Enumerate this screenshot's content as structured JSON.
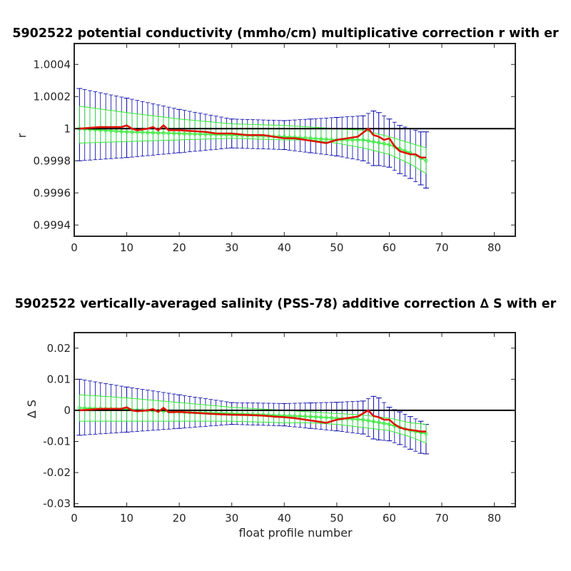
{
  "colors": {
    "background": "#ffffff",
    "axes": "#262626",
    "error_blue": "#0000a8",
    "fit_green": "#33ee33",
    "correction_red": "#dd1100",
    "zero_line": "#000000"
  },
  "chart_data": [
    {
      "type": "line",
      "title": "5902522 potential conductivity (mmho/cm) multiplicative correction r with er",
      "xlabel": "",
      "ylabel": "r",
      "xlim": [
        0,
        84
      ],
      "ylim": [
        0.99933,
        1.00053
      ],
      "xticks": [
        0,
        10,
        20,
        30,
        40,
        50,
        60,
        70,
        80
      ],
      "xtick_labels": [
        "0",
        "10",
        "20",
        "30",
        "40",
        "50",
        "60",
        "70",
        "80"
      ],
      "yticks": [
        0.9994,
        0.9996,
        0.9998,
        1.0,
        1.0002,
        1.0004
      ],
      "ytick_labels": [
        "0.9994",
        "0.9996",
        "0.9998",
        "1",
        "1.0002",
        "1.0004"
      ],
      "reference_line": 1.0,
      "grid": false,
      "series": [
        {
          "role": "correction",
          "color": "#dd1100",
          "x": [
            1,
            5,
            7,
            9,
            10,
            11,
            12,
            14,
            15,
            16,
            17,
            18,
            20,
            25,
            27,
            30,
            33,
            36,
            38,
            40,
            42,
            44,
            46,
            48,
            50,
            52,
            54,
            56,
            57,
            58,
            59,
            60,
            61,
            62,
            63,
            64,
            65,
            66,
            67
          ],
          "y": [
            1.0,
            1.00001,
            1.00001,
            1.00001,
            1.00002,
            1.0,
            0.99999,
            1.0,
            1.00001,
            0.99999,
            1.00002,
            0.99999,
            0.99999,
            0.99998,
            0.99997,
            0.99997,
            0.99996,
            0.99996,
            0.99995,
            0.99994,
            0.99994,
            0.99993,
            0.99992,
            0.99991,
            0.99993,
            0.99994,
            0.99995,
            1.0,
            0.99996,
            0.99995,
            0.99993,
            0.99994,
            0.99989,
            0.99986,
            0.99985,
            0.99984,
            0.99984,
            0.99982,
            0.99982
          ]
        },
        {
          "role": "fit",
          "color": "#33ee33",
          "x_start": 1,
          "x_end": 67,
          "y": [
            1.0,
            0.99998,
            0.99997,
            0.99996,
            0.99995,
            0.99994,
            0.99993,
            0.99993,
            0.9999,
            0.99985,
            0.9998
          ],
          "x": [
            1,
            10,
            20,
            30,
            40,
            45,
            50,
            55,
            60,
            64,
            67
          ],
          "band_upper": [
            1.00014,
            1.0001,
            1.00006,
            1.00003,
            1.00002,
            1.00001,
            1.0,
            0.99999,
            0.99995,
            0.99991,
            0.99988
          ],
          "band_lower": [
            0.99991,
            0.99992,
            0.99993,
            0.99994,
            0.99993,
            0.99993,
            0.99991,
            0.99988,
            0.99984,
            0.99978,
            0.99972
          ]
        },
        {
          "role": "error_bars",
          "color": "#0000a8",
          "x": [
            1,
            10,
            20,
            30,
            40,
            45,
            50,
            55,
            57,
            58,
            60,
            62,
            64,
            66,
            67
          ],
          "upper": [
            1.00025,
            1.00019,
            1.00012,
            1.00006,
            1.00005,
            1.00006,
            1.00007,
            1.00008,
            1.00011,
            1.0001,
            1.00006,
            1.00002,
            1.0,
            0.99998,
            0.99998
          ],
          "lower": [
            0.9998,
            0.99982,
            0.99985,
            0.99988,
            0.99987,
            0.99985,
            0.99983,
            0.9998,
            0.99977,
            0.99977,
            0.99976,
            0.99972,
            0.99969,
            0.99965,
            0.99963
          ]
        }
      ]
    },
    {
      "type": "line",
      "title": "5902522 vertically-averaged salinity (PSS-78) additive correction ∆ S with er",
      "xlabel": "float profile number",
      "ylabel": "∆ S",
      "xlim": [
        0,
        84
      ],
      "ylim": [
        -0.031,
        0.025
      ],
      "xticks": [
        0,
        10,
        20,
        30,
        40,
        50,
        60,
        70,
        80
      ],
      "xtick_labels": [
        "0",
        "10",
        "20",
        "30",
        "40",
        "50",
        "60",
        "70",
        "80"
      ],
      "yticks": [
        -0.03,
        -0.02,
        -0.01,
        0,
        0.01,
        0.02
      ],
      "ytick_labels": [
        "-0.03",
        "-0.02",
        "-0.01",
        "0",
        "0.01",
        "0.02"
      ],
      "reference_line": 0,
      "grid": false,
      "series": [
        {
          "role": "correction",
          "color": "#dd1100",
          "x": [
            1,
            5,
            7,
            9,
            10,
            11,
            12,
            14,
            15,
            16,
            17,
            18,
            20,
            25,
            27,
            30,
            33,
            36,
            38,
            40,
            42,
            44,
            46,
            48,
            50,
            52,
            54,
            56,
            57,
            58,
            59,
            60,
            61,
            62,
            63,
            64,
            65,
            66,
            67
          ],
          "y": [
            0.0,
            0.0005,
            0.0005,
            0.0005,
            0.001,
            0.0,
            -0.0003,
            0.0,
            0.0004,
            -0.0005,
            0.0008,
            -0.0006,
            -0.0005,
            -0.001,
            -0.0012,
            -0.0014,
            -0.0015,
            -0.0017,
            -0.002,
            -0.0022,
            -0.0025,
            -0.003,
            -0.0035,
            -0.004,
            -0.003,
            -0.0025,
            -0.002,
            0.0,
            -0.0018,
            -0.0022,
            -0.003,
            -0.003,
            -0.0045,
            -0.0055,
            -0.006,
            -0.0063,
            -0.0065,
            -0.0068,
            -0.0068
          ]
        },
        {
          "role": "fit",
          "color": "#33ee33",
          "x": [
            1,
            10,
            20,
            30,
            40,
            45,
            50,
            55,
            60,
            64,
            67
          ],
          "y": [
            0.0008,
            0.0003,
            -0.0005,
            -0.001,
            -0.0017,
            -0.002,
            -0.0025,
            -0.003,
            -0.0045,
            -0.0065,
            -0.0075
          ],
          "band_upper": [
            0.005,
            0.004,
            0.0025,
            0.001,
            0.0,
            -0.0005,
            -0.001,
            -0.0015,
            -0.0025,
            -0.004,
            -0.0045
          ],
          "band_lower": [
            -0.0035,
            -0.0035,
            -0.0035,
            -0.0035,
            -0.004,
            -0.004,
            -0.0045,
            -0.0055,
            -0.0065,
            -0.0085,
            -0.0105
          ]
        },
        {
          "role": "error_bars",
          "color": "#0000a8",
          "x": [
            1,
            10,
            20,
            30,
            40,
            45,
            50,
            55,
            57,
            58,
            60,
            62,
            64,
            66,
            67
          ],
          "upper": [
            0.01,
            0.0075,
            0.005,
            0.0025,
            0.0022,
            0.0024,
            0.0026,
            0.003,
            0.0045,
            0.004,
            0.001,
            -0.0005,
            -0.002,
            -0.0035,
            -0.0045
          ],
          "lower": [
            -0.008,
            -0.007,
            -0.0058,
            -0.0045,
            -0.005,
            -0.0058,
            -0.0066,
            -0.0076,
            -0.0092,
            -0.0095,
            -0.0098,
            -0.011,
            -0.0125,
            -0.0138,
            -0.014
          ]
        }
      ]
    }
  ]
}
